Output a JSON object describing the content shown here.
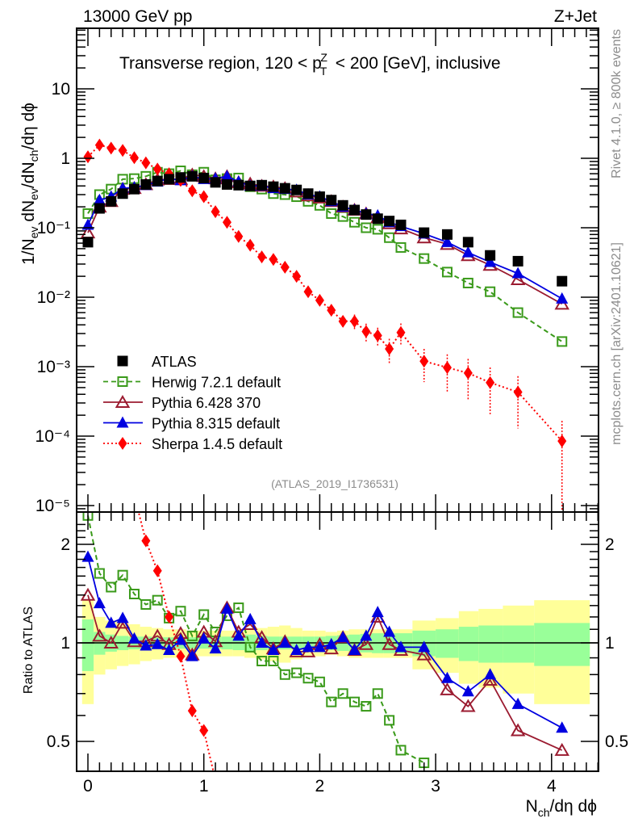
{
  "header": {
    "left": "13000 GeV pp",
    "right": "Z+Jet"
  },
  "side_labels": {
    "top": "Rivet 4.1.0, ≥ 800k events",
    "bottom": "mcplots.cern.ch [arXiv:2401.10621]"
  },
  "colors": {
    "atlas": "#000000",
    "herwig": "#3a9a1a",
    "pythia6": "#9b1b30",
    "pythia8": "#0000e0",
    "sherpa": "#ff0000",
    "band_inner": "#99ff99",
    "band_outer": "#ffff99"
  },
  "chart_data": [
    {
      "type": "scatter",
      "title": "Transverse region, 120 < p_T^Z < 200 [GeV], inclusive",
      "xlabel": "N_ch/dη dϕ",
      "ylabel": "1/N_ev dN_ev/dN_ch/dη dϕ",
      "yscale": "log",
      "xlim": [
        -0.1,
        4.4
      ],
      "ylim": [
        7e-06,
        80
      ],
      "y_ticks": [
        {
          "value": 10,
          "label": "10"
        },
        {
          "value": 1,
          "label": "1"
        },
        {
          "value": 0.1,
          "label": "10⁻¹"
        },
        {
          "value": 0.01,
          "label": "10⁻²"
        },
        {
          "value": 0.001,
          "label": "10⁻³"
        },
        {
          "value": 0.0001,
          "label": "10⁻⁴"
        },
        {
          "value": 1e-05,
          "label": "10⁻⁵"
        }
      ],
      "x_ticks": [
        "0",
        "1",
        "2",
        "3",
        "4"
      ],
      "analysis_label": "(ATLAS_2019_I1736531)",
      "legend_position": "lower-left",
      "x": [
        0,
        0.1,
        0.2,
        0.3,
        0.4,
        0.5,
        0.6,
        0.7,
        0.8,
        0.9,
        1.0,
        1.1,
        1.2,
        1.3,
        1.4,
        1.5,
        1.6,
        1.7,
        1.8,
        1.9,
        2.0,
        2.1,
        2.2,
        2.3,
        2.4,
        2.5,
        2.6,
        2.7,
        2.9,
        3.1,
        3.28,
        3.47,
        3.71,
        4.09
      ],
      "series": [
        {
          "name": "ATLAS",
          "key": "atlas",
          "marker": "filled-square",
          "line": "none",
          "values": [
            0.062,
            0.19,
            0.24,
            0.31,
            0.36,
            0.42,
            0.47,
            0.5,
            0.53,
            0.55,
            0.52,
            0.45,
            0.42,
            0.41,
            0.4,
            0.41,
            0.39,
            0.37,
            0.35,
            0.31,
            0.28,
            0.25,
            0.21,
            0.18,
            0.155,
            0.135,
            0.125,
            0.11,
            0.085,
            0.08,
            0.062,
            0.04,
            0.033,
            0.017
          ]
        },
        {
          "name": "Herwig 7.2.1 default",
          "key": "herwig",
          "marker": "open-square",
          "line": "dashed",
          "values": [
            0.16,
            0.3,
            0.36,
            0.5,
            0.51,
            0.55,
            0.63,
            0.6,
            0.66,
            0.58,
            0.63,
            0.49,
            0.51,
            0.52,
            0.39,
            0.36,
            0.31,
            0.3,
            0.28,
            0.24,
            0.21,
            0.16,
            0.145,
            0.12,
            0.1,
            0.095,
            0.072,
            0.052,
            0.036,
            0.023,
            0.016,
            0.012,
            0.006,
            0.0023
          ]
        },
        {
          "name": "Pythia 6.428 370",
          "key": "pythia6",
          "marker": "open-triangle",
          "line": "solid",
          "values": [
            0.085,
            0.2,
            0.24,
            0.36,
            0.37,
            0.42,
            0.49,
            0.5,
            0.5,
            0.58,
            0.55,
            0.51,
            0.55,
            0.45,
            0.43,
            0.4,
            0.39,
            0.37,
            0.33,
            0.29,
            0.27,
            0.24,
            0.2,
            0.18,
            0.16,
            0.14,
            0.115,
            0.097,
            0.072,
            0.058,
            0.04,
            0.029,
            0.018,
            0.008
          ]
        },
        {
          "name": "Pythia 8.315 default",
          "key": "pythia8",
          "marker": "filled-triangle",
          "line": "solid",
          "values": [
            0.11,
            0.25,
            0.28,
            0.37,
            0.38,
            0.41,
            0.46,
            0.51,
            0.48,
            0.55,
            0.5,
            0.51,
            0.55,
            0.46,
            0.4,
            0.4,
            0.37,
            0.36,
            0.35,
            0.3,
            0.28,
            0.24,
            0.2,
            0.18,
            0.16,
            0.15,
            0.12,
            0.105,
            0.082,
            0.062,
            0.044,
            0.032,
            0.022,
            0.0095
          ]
        },
        {
          "name": "Sherpa 1.4.5 default",
          "key": "sherpa",
          "marker": "filled-diamond",
          "line": "dotted",
          "values": [
            1.05,
            1.55,
            1.4,
            1.3,
            1.02,
            0.86,
            0.7,
            0.6,
            0.48,
            0.34,
            0.28,
            0.17,
            0.12,
            0.075,
            0.056,
            0.038,
            0.035,
            0.027,
            0.02,
            0.012,
            0.009,
            0.0065,
            0.0045,
            0.0045,
            0.0032,
            0.0028,
            0.0018,
            0.0031,
            0.0012,
            0.00097,
            0.00081,
            0.00059,
            0.00043,
            8.5e-05
          ],
          "errors_rel": [
            0,
            0,
            0,
            0,
            0,
            0,
            0,
            0,
            0,
            0,
            0,
            0,
            0,
            0,
            0,
            0,
            0,
            0,
            0,
            0,
            0,
            0.2,
            0.2,
            0.25,
            0.3,
            0.3,
            0.4,
            0.35,
            0.5,
            0.55,
            0.6,
            0.65,
            0.7,
            0.95
          ]
        }
      ]
    },
    {
      "type": "line",
      "title": "",
      "xlabel": "N_ch/dη dϕ",
      "ylabel": "Ratio to ATLAS",
      "yscale": "log",
      "ylim": [
        0.42,
        2.4
      ],
      "y_ticks": [
        {
          "value": 2,
          "label": "2"
        },
        {
          "value": 1,
          "label": "1"
        },
        {
          "value": 0.5,
          "label": "0.5"
        }
      ],
      "x": [
        0,
        0.1,
        0.2,
        0.3,
        0.4,
        0.5,
        0.6,
        0.7,
        0.8,
        0.9,
        1.0,
        1.1,
        1.2,
        1.3,
        1.4,
        1.5,
        1.6,
        1.7,
        1.8,
        1.9,
        2.0,
        2.1,
        2.2,
        2.3,
        2.4,
        2.5,
        2.6,
        2.7,
        2.9,
        3.1,
        3.28,
        3.47,
        3.71,
        4.09
      ],
      "bin_edges": [
        -0.05,
        0.05,
        0.15,
        0.25,
        0.35,
        0.45,
        0.55,
        0.65,
        0.75,
        0.85,
        0.95,
        1.05,
        1.15,
        1.25,
        1.35,
        1.45,
        1.55,
        1.65,
        1.75,
        1.85,
        1.95,
        2.05,
        2.15,
        2.25,
        2.35,
        2.45,
        2.55,
        2.65,
        2.8,
        3.0,
        3.2,
        3.37,
        3.58,
        3.85,
        4.33
      ],
      "band_inner": [
        0.18,
        0.08,
        0.06,
        0.05,
        0.045,
        0.045,
        0.04,
        0.04,
        0.04,
        0.04,
        0.04,
        0.04,
        0.045,
        0.05,
        0.06,
        0.05,
        0.045,
        0.045,
        0.045,
        0.045,
        0.045,
        0.05,
        0.055,
        0.06,
        0.065,
        0.07,
        0.07,
        0.07,
        0.09,
        0.1,
        0.12,
        0.13,
        0.13,
        0.15
      ],
      "band_outer": [
        0.35,
        0.2,
        0.17,
        0.15,
        0.14,
        0.12,
        0.11,
        0.1,
        0.1,
        0.09,
        0.09,
        0.09,
        0.09,
        0.09,
        0.1,
        0.11,
        0.12,
        0.13,
        0.11,
        0.09,
        0.09,
        0.08,
        0.09,
        0.1,
        0.1,
        0.1,
        0.1,
        0.1,
        0.17,
        0.19,
        0.25,
        0.27,
        0.3,
        0.35
      ],
      "series": [
        {
          "name": "Herwig 7.2.1 default",
          "key": "herwig",
          "marker": "open-square",
          "line": "dashed",
          "values": [
            2.45,
            1.63,
            1.48,
            1.61,
            1.41,
            1.31,
            1.35,
            1.19,
            1.25,
            1.05,
            1.22,
            1.08,
            1.21,
            1.28,
            0.97,
            0.88,
            0.88,
            0.8,
            0.81,
            0.78,
            0.76,
            0.66,
            0.7,
            0.66,
            0.64,
            0.7,
            0.58,
            0.47,
            0.43
          ]
        },
        {
          "name": "Pythia 6.428 370",
          "key": "pythia6",
          "marker": "open-triangle",
          "line": "solid",
          "values": [
            1.4,
            1.05,
            1.0,
            1.15,
            1.01,
            1.01,
            1.05,
            0.99,
            1.07,
            0.92,
            1.08,
            1.01,
            1.28,
            1.08,
            1.14,
            1.04,
            0.96,
            1.01,
            0.94,
            0.94,
            0.99,
            0.96,
            1.04,
            0.95,
            0.99,
            1.2,
            0.99,
            0.95,
            0.92,
            0.72,
            0.64,
            0.77,
            0.54,
            0.47
          ]
        },
        {
          "name": "Pythia 8.315 default",
          "key": "pythia8",
          "marker": "filled-triangle",
          "line": "solid",
          "values": [
            1.83,
            1.32,
            1.15,
            1.19,
            1.03,
            0.98,
            0.99,
            0.95,
            1.02,
            0.91,
            1.03,
            0.96,
            1.27,
            1.05,
            1.18,
            1.0,
            0.95,
            1.0,
            0.95,
            0.97,
            0.97,
            0.99,
            1.04,
            0.95,
            1.05,
            1.24,
            1.08,
            0.97,
            0.97,
            0.78,
            0.71,
            0.8,
            0.65,
            0.55
          ]
        },
        {
          "name": "Sherpa 1.4.5 default",
          "key": "sherpa",
          "marker": "filled-diamond",
          "line": "dotted",
          "values": [
            17,
            8.2,
            5.8,
            4.2,
            2.83,
            2.05,
            1.66,
            1.2,
            0.91,
            0.62,
            0.54,
            0.38,
            0.34
          ]
        }
      ]
    }
  ]
}
